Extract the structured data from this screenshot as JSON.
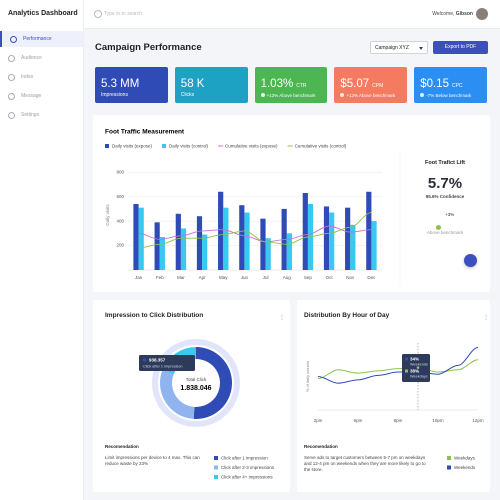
{
  "sidebar": {
    "title": "Analytics Dashboard",
    "nav": [
      "Performance",
      "Audience",
      "Index",
      "Message",
      "Settings"
    ],
    "active": 0
  },
  "topbar": {
    "search_placeholder": "Type in to search",
    "welcome": "Welcome,",
    "user": "Gibson"
  },
  "header": {
    "title": "Campaign Performance",
    "campaign": "Campaign XYZ",
    "export": "Export to PDF"
  },
  "kpis": [
    {
      "value": "5.3 MM",
      "label": "Impressions",
      "color": "#2f4bb5"
    },
    {
      "value": "58 K",
      "label": "Clicks",
      "color": "#1ea2c4"
    },
    {
      "value": "1.03%",
      "label": "CTR",
      "note": "+13% Above benchmark",
      "color": "#4cb752"
    },
    {
      "value": "$5.07",
      "label": "CPM",
      "note": "+13% Above benchmark",
      "color": "#f47b5f"
    },
    {
      "value": "$0.15",
      "label": "CPC",
      "note": "-7% Below benchmark",
      "color": "#2b8ef3"
    }
  ],
  "lift": {
    "title": "Foot Trafict Lift",
    "value": "5.7%",
    "confidence": "95.6% Confidence",
    "change": "+3%",
    "change_note": "Above benchmark"
  },
  "chart_data": [
    {
      "type": "bar",
      "title": "Foot Traffic Measurement",
      "ylabel": "Daily visits",
      "categories": [
        "Jan",
        "Feb",
        "Mar",
        "Apr",
        "May",
        "Jun",
        "Jul",
        "Aug",
        "Sep",
        "Oct",
        "Nov",
        "Dec"
      ],
      "series": [
        {
          "name": "Daily visits (expose)",
          "type": "bar",
          "color": "#2f4bb5",
          "values": [
            540,
            390,
            460,
            440,
            640,
            530,
            420,
            500,
            630,
            520,
            510,
            640
          ]
        },
        {
          "name": "Daily visits (control)",
          "type": "bar",
          "color": "#38c8f0",
          "values": [
            510,
            270,
            340,
            290,
            510,
            470,
            260,
            300,
            540,
            470,
            370,
            400
          ]
        },
        {
          "name": "Cumulative visits (expose)",
          "type": "line",
          "color": "#c86dd7",
          "values": [
            300,
            250,
            280,
            320,
            330,
            280,
            230,
            250,
            290,
            360,
            310,
            330
          ]
        },
        {
          "name": "Cumulative visits (control)",
          "type": "line",
          "color": "#8bc34a",
          "values": [
            180,
            210,
            260,
            260,
            290,
            320,
            230,
            210,
            270,
            300,
            350,
            470
          ]
        }
      ],
      "ylim": [
        0,
        900
      ],
      "yticks": [
        200,
        400,
        600,
        800
      ],
      "grid": true
    },
    {
      "type": "pie",
      "title": "Impression to Click Distribution",
      "categories": [
        "Click after 1 impression",
        "Click after 2-3 impressions",
        "Click after 4+ impressions"
      ],
      "values": [
        938357,
        550000,
        349689
      ],
      "value_labels": [
        "938.357",
        null,
        null
      ],
      "colors": [
        "#2f4bb5",
        "#8fb4f0",
        "#38c8f0"
      ],
      "center_title": "Total Click",
      "center_label": "1.838.046",
      "recommendation_title": "Recomendation",
      "recommendation": "Limit impressions per device to 4 max. This can reduce waste by 23%"
    },
    {
      "type": "line",
      "title": "Distribution By Hour of Day",
      "ylabel": "% of daily volume",
      "categories": [
        "2pm",
        null,
        "6pm",
        null,
        "8pm",
        null,
        "10pm",
        null,
        "12pm"
      ],
      "series": [
        {
          "name": "Weekdays",
          "color": "#8bc34a",
          "values": [
            28,
            36,
            33,
            35,
            37,
            38,
            34,
            36,
            45
          ],
          "value_labels": [
            null,
            null,
            null,
            null,
            null,
            "38%",
            null,
            null,
            null
          ]
        },
        {
          "name": "Weekends",
          "color": "#2f4bb5",
          "values": [
            30,
            24,
            27,
            31,
            34,
            34,
            32,
            40,
            56
          ],
          "value_labels": [
            null,
            null,
            null,
            null,
            null,
            "34%",
            null,
            null,
            null
          ]
        }
      ],
      "ylim": [
        0,
        60
      ],
      "recommendation_title": "Recomendation",
      "recommendation": "Serve ads to target customers between 5-7 pm on weekdays and 12-4 pm on weekends when they are more likely to go to the store."
    }
  ]
}
